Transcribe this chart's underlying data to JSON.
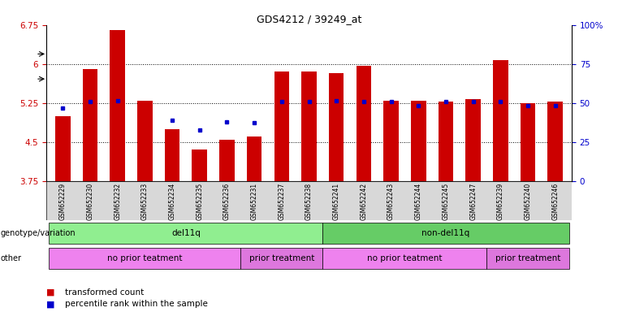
{
  "title": "GDS4212 / 39249_at",
  "samples": [
    "GSM652229",
    "GSM652230",
    "GSM652232",
    "GSM652233",
    "GSM652234",
    "GSM652235",
    "GSM652236",
    "GSM652231",
    "GSM652237",
    "GSM652238",
    "GSM652241",
    "GSM652242",
    "GSM652243",
    "GSM652244",
    "GSM652245",
    "GSM652247",
    "GSM652239",
    "GSM652240",
    "GSM652246"
  ],
  "bar_values": [
    5.0,
    5.9,
    6.65,
    5.3,
    4.75,
    4.35,
    4.55,
    4.6,
    5.85,
    5.85,
    5.82,
    5.97,
    5.3,
    5.3,
    5.28,
    5.33,
    6.08,
    5.25,
    5.27
  ],
  "blue_dot_values": [
    5.15,
    5.28,
    5.3,
    null,
    4.92,
    4.73,
    4.88,
    4.87,
    5.28,
    5.28,
    5.3,
    5.28,
    5.28,
    5.2,
    5.28,
    5.28,
    5.28,
    5.2,
    5.2
  ],
  "ymin": 3.75,
  "ymax": 6.75,
  "yticks": [
    3.75,
    4.5,
    5.25,
    6.0,
    6.75
  ],
  "ytick_labels": [
    "3.75",
    "4.5",
    "5.25",
    "6",
    "6.75"
  ],
  "right_ytick_labels": [
    "0",
    "25",
    "50",
    "75",
    "100%"
  ],
  "bar_color": "#cc0000",
  "dot_color": "#0000cc",
  "axis_label_color_left": "#cc0000",
  "axis_label_color_right": "#0000cc",
  "genotype_groups": [
    {
      "label": "del11q",
      "start": 0,
      "end": 10,
      "color": "#90ee90"
    },
    {
      "label": "non-del11q",
      "start": 10,
      "end": 19,
      "color": "#66cc66"
    }
  ],
  "other_groups": [
    {
      "label": "no prior teatment",
      "start": 0,
      "end": 7,
      "color": "#ee82ee"
    },
    {
      "label": "prior treatment",
      "start": 7,
      "end": 10,
      "color": "#dd77dd"
    },
    {
      "label": "no prior teatment",
      "start": 10,
      "end": 16,
      "color": "#ee82ee"
    },
    {
      "label": "prior treatment",
      "start": 16,
      "end": 19,
      "color": "#dd77dd"
    }
  ],
  "legend_items": [
    {
      "label": "transformed count",
      "color": "#cc0000"
    },
    {
      "label": "percentile rank within the sample",
      "color": "#0000cc"
    }
  ],
  "background_color": "#ffffff"
}
